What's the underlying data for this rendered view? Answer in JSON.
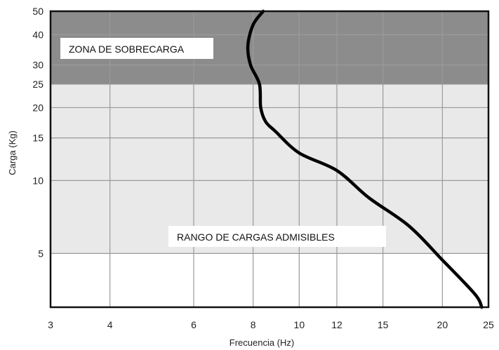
{
  "chart_data": {
    "type": "line",
    "title": "",
    "xlabel": "Frecuencia  (Hz)",
    "ylabel": "Carga (Kg)",
    "x_scale": "log",
    "y_scale": "log",
    "xlim": [
      3,
      25
    ],
    "ylim": [
      3,
      50
    ],
    "x_ticks": [
      3,
      4,
      6,
      8,
      10,
      12,
      15,
      20,
      25
    ],
    "y_ticks": [
      5,
      10,
      15,
      20,
      25,
      30,
      40,
      50
    ],
    "grid": true,
    "regions": [
      {
        "label": "RANGO DE CARGAS ADMISIBLES",
        "y_from": 5,
        "y_to": 25,
        "color": "#e9e9e9"
      },
      {
        "label": "ZONA DE SOBRECARGA",
        "y_from": 25,
        "y_to": 50,
        "color": "#8c8c8c"
      }
    ],
    "series": [
      {
        "color": "#000000",
        "points": [
          {
            "x": 24.2,
            "y": 3.0
          },
          {
            "x": 23.4,
            "y": 3.4
          },
          {
            "x": 20.0,
            "y": 4.7
          },
          {
            "x": 17.0,
            "y": 6.5
          },
          {
            "x": 14.0,
            "y": 8.5
          },
          {
            "x": 12.0,
            "y": 11.0
          },
          {
            "x": 10.0,
            "y": 13.0
          },
          {
            "x": 8.9,
            "y": 16.0
          },
          {
            "x": 8.5,
            "y": 17.5
          },
          {
            "x": 8.3,
            "y": 20.0
          },
          {
            "x": 8.25,
            "y": 25.0
          },
          {
            "x": 7.9,
            "y": 30.0
          },
          {
            "x": 7.8,
            "y": 36.0
          },
          {
            "x": 8.0,
            "y": 44.0
          },
          {
            "x": 8.4,
            "y": 50.0
          }
        ]
      }
    ]
  }
}
